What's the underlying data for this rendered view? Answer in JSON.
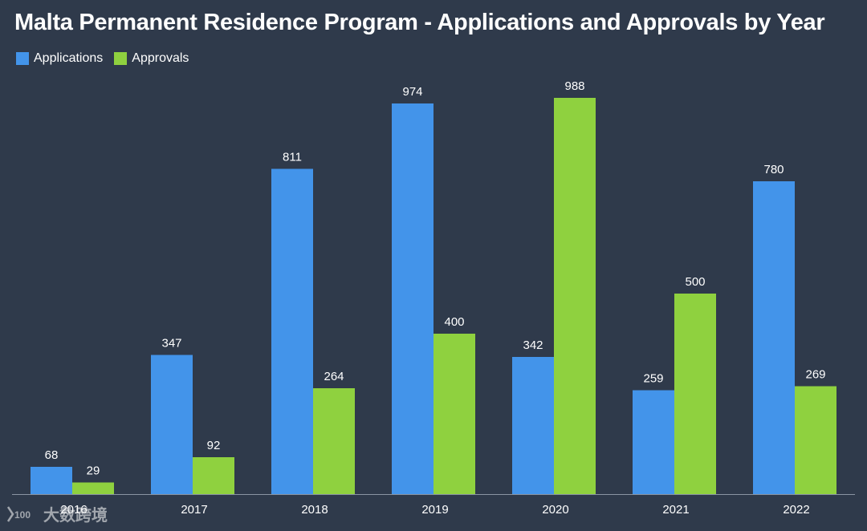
{
  "chart_data": {
    "type": "bar",
    "title": "Malta Permanent Residence Program - Applications and Approvals by Year",
    "categories": [
      "2016",
      "2017",
      "2018",
      "2019",
      "2020",
      "2021",
      "2022"
    ],
    "series": [
      {
        "name": "Applications",
        "color": "#4394ea",
        "values": [
          68,
          347,
          811,
          974,
          342,
          259,
          780
        ]
      },
      {
        "name": "Approvals",
        "color": "#8fd13f",
        "values": [
          29,
          92,
          264,
          400,
          988,
          500,
          269
        ]
      }
    ],
    "xlabel": "",
    "ylabel": "",
    "ylim": [
      0,
      1000
    ],
    "grid": false,
    "legend": "top-left"
  },
  "colors": {
    "background": "#2f3a4b",
    "axis": "#8a94a3",
    "text": "#ffffff"
  },
  "watermark": {
    "text": "大数跨境",
    "logo_text": "100"
  }
}
